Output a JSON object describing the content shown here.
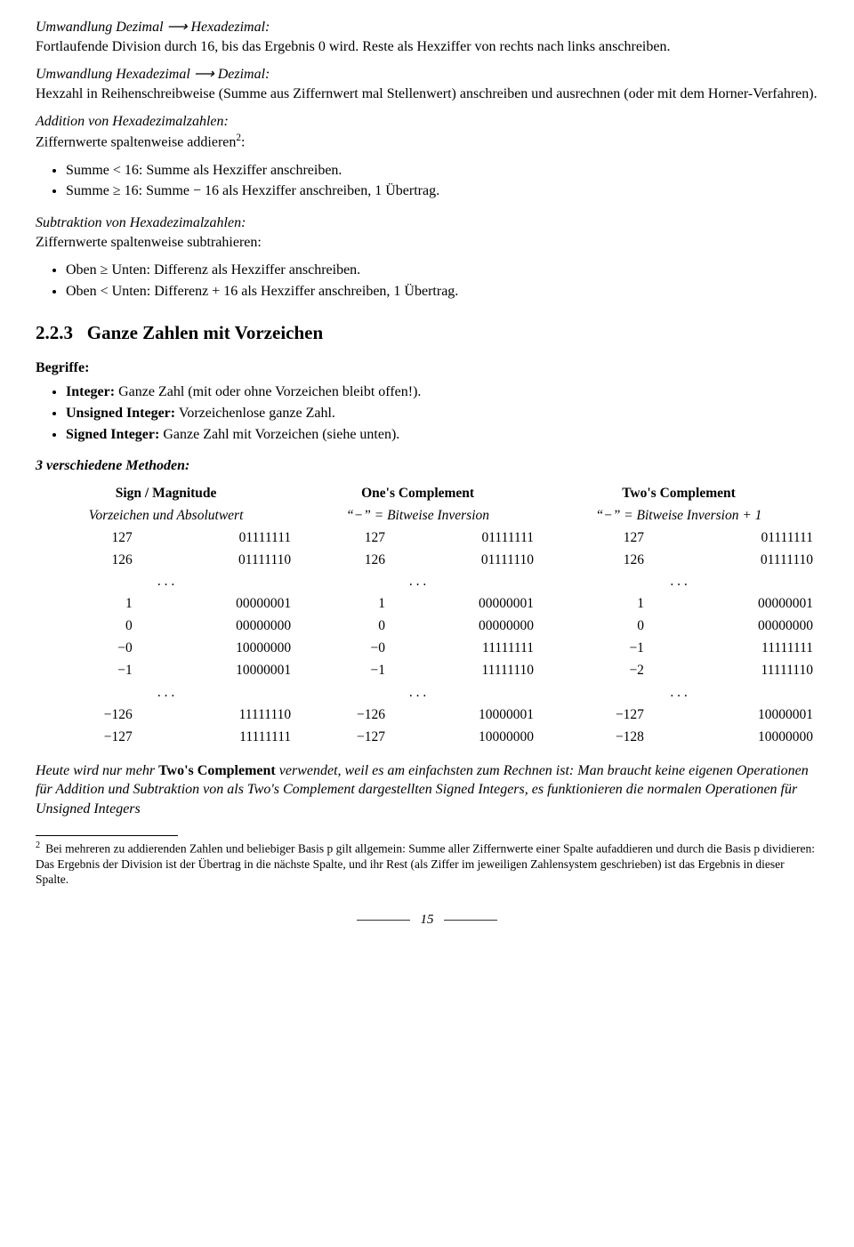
{
  "p1_head": "Umwandlung Dezimal ⟶ Hexadezimal:",
  "p1_body": "Fortlaufende Division durch 16, bis das Ergebnis 0 wird. Reste als Hexziffer von rechts nach links anschreiben.",
  "p2_head": "Umwandlung Hexadezimal ⟶ Dezimal:",
  "p2_body": "Hexzahl in Reihenschreibweise (Summe aus Ziffernwert mal Stellenwert) anschreiben und ausrechnen (oder mit dem Horner-Verfahren).",
  "p3_head": "Addition von Hexadezimalzahlen:",
  "p3_body_a": "Ziffernwerte spaltenweise addieren",
  "p3_body_sup": "2",
  "p3_body_b": ":",
  "add_li1": "Summe < 16: Summe als Hexziffer anschreiben.",
  "add_li2": "Summe ≥ 16: Summe − 16 als Hexziffer anschreiben, 1 Übertrag.",
  "p4_head": "Subtraktion von Hexadezimalzahlen:",
  "p4_body": "Ziffernwerte spaltenweise subtrahieren:",
  "sub_li1": "Oben ≥ Unten: Differenz als Hexziffer anschreiben.",
  "sub_li2": "Oben < Unten: Differenz + 16 als Hexziffer anschreiben, 1 Übertrag.",
  "sec_num": "2.2.3",
  "sec_title": "Ganze Zahlen mit Vorzeichen",
  "begriffe": "Begriffe:",
  "b_li1_b": "Integer:",
  "b_li1_t": " Ganze Zahl (mit oder ohne Vorzeichen bleibt offen!).",
  "b_li2_b": "Unsigned Integer:",
  "b_li2_t": " Vorzeichenlose ganze Zahl.",
  "b_li3_b": "Signed Integer:",
  "b_li3_t": " Ganze Zahl mit Vorzeichen (siehe unten).",
  "methoden": "3 verschiedene Methoden:",
  "col1_h": "Sign / Magnitude",
  "col1_s": "Vorzeichen und Absolutwert",
  "col2_h": "One's Complement",
  "col2_s": "“−” = Bitweise Inversion",
  "col3_h": "Two's Complement",
  "col3_s": "“−” = Bitweise Inversion + 1",
  "rows": [
    [
      "127",
      "01111111",
      "127",
      "01111111",
      "127",
      "01111111"
    ],
    [
      "126",
      "01111110",
      "126",
      "01111110",
      "126",
      "01111110"
    ],
    [
      "dots"
    ],
    [
      "1",
      "00000001",
      "1",
      "00000001",
      "1",
      "00000001"
    ],
    [
      "0",
      "00000000",
      "0",
      "00000000",
      "0",
      "00000000"
    ],
    [
      "−0",
      "10000000",
      "−0",
      "11111111",
      "−1",
      "11111111"
    ],
    [
      "−1",
      "10000001",
      "−1",
      "11111110",
      "−2",
      "11111110"
    ],
    [
      "dots"
    ],
    [
      "−126",
      "11111110",
      "−126",
      "10000001",
      "−127",
      "10000001"
    ],
    [
      "−127",
      "11111111",
      "−127",
      "10000000",
      "−128",
      "10000000"
    ]
  ],
  "dots": ". . .",
  "post_a": "Heute wird nur mehr ",
  "post_b": "Two's Complement",
  "post_c": " verwendet, weil es am einfachsten zum Rechnen ist: Man braucht keine eigenen Operationen für Addition und Subtraktion von als Two's Complement dargestellten Signed Integers, es funktionieren die normalen Operationen für Unsigned Integers",
  "fn_num": "2",
  "fn_text": "Bei mehreren zu addierenden Zahlen und beliebiger Basis p gilt allgemein: Summe aller Ziffernwerte einer Spalte aufaddieren und durch die Basis p dividieren: Das Ergebnis der Division ist der Übertrag in die nächste Spalte, und ihr Rest (als Ziffer im jeweiligen Zahlensystem geschrieben) ist das Ergebnis in dieser Spalte.",
  "pagenum": "15"
}
